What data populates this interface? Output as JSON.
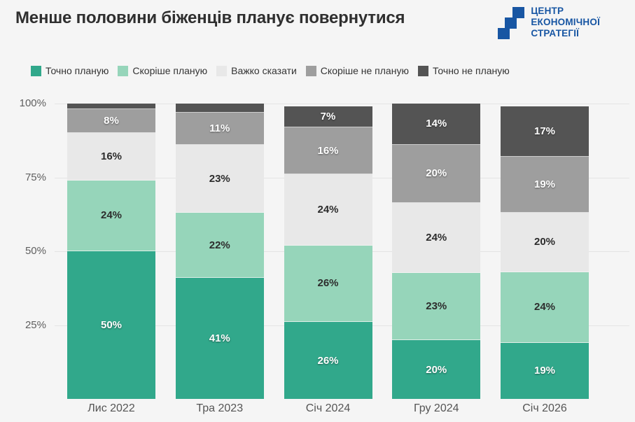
{
  "header": {
    "title": "Менше половини біженців планує повернутися",
    "logo": {
      "lines": [
        "ЦЕНТР",
        "ЕКОНОМІЧНОЇ",
        "СТРАТЕГІЇ"
      ],
      "color": "#1856a3"
    }
  },
  "colors": {
    "background": "#f5f5f5",
    "gridline": "#e4e4e4",
    "title": "#2f2f2f",
    "y_tick_label": "#5f5f5f",
    "x_tick_label": "#555555",
    "legend_label": "#333333",
    "logo_blue": "#1856a3"
  },
  "chart_data": {
    "type": "bar",
    "variant": "stacked-percent",
    "title": "Менше половини біженців планує повернутися",
    "categories": [
      "Лис 2022",
      "Тра 2023",
      "Січ 2024",
      "Гру 2024",
      "Січ 2026"
    ],
    "series": [
      {
        "name": "Точно планую",
        "color": "#31a88b",
        "label_color": "#ffffff",
        "label_shadow": true,
        "values": [
          50,
          41,
          26,
          20,
          19
        ]
      },
      {
        "name": "Скоріше планую",
        "color": "#96d5ba",
        "label_color": "#2d2d2d",
        "label_shadow": false,
        "values": [
          24,
          22,
          26,
          23,
          24
        ]
      },
      {
        "name": "Важко сказати",
        "color": "#e8e8e8",
        "label_color": "#2d2d2d",
        "label_shadow": false,
        "values": [
          16,
          23,
          24,
          24,
          20
        ]
      },
      {
        "name": "Скоріше не планую",
        "color": "#9e9e9e",
        "label_color": "#ffffff",
        "label_shadow": true,
        "values": [
          8,
          11,
          16,
          20,
          19
        ]
      },
      {
        "name": "Точно не планую",
        "color": "#545454",
        "label_color": "#ffffff",
        "label_shadow": true,
        "values": [
          2,
          3,
          7,
          14,
          17
        ]
      }
    ],
    "label_suffix": "%",
    "min_label_value": 5,
    "y_ticks": [
      {
        "label": "100%",
        "pos": 0
      },
      {
        "label": "75%",
        "pos": 25
      },
      {
        "label": "50%",
        "pos": 50
      },
      {
        "label": "25%",
        "pos": 75
      }
    ],
    "ylim": [
      0,
      100
    ],
    "grid": true,
    "legend_position": "top-left"
  }
}
